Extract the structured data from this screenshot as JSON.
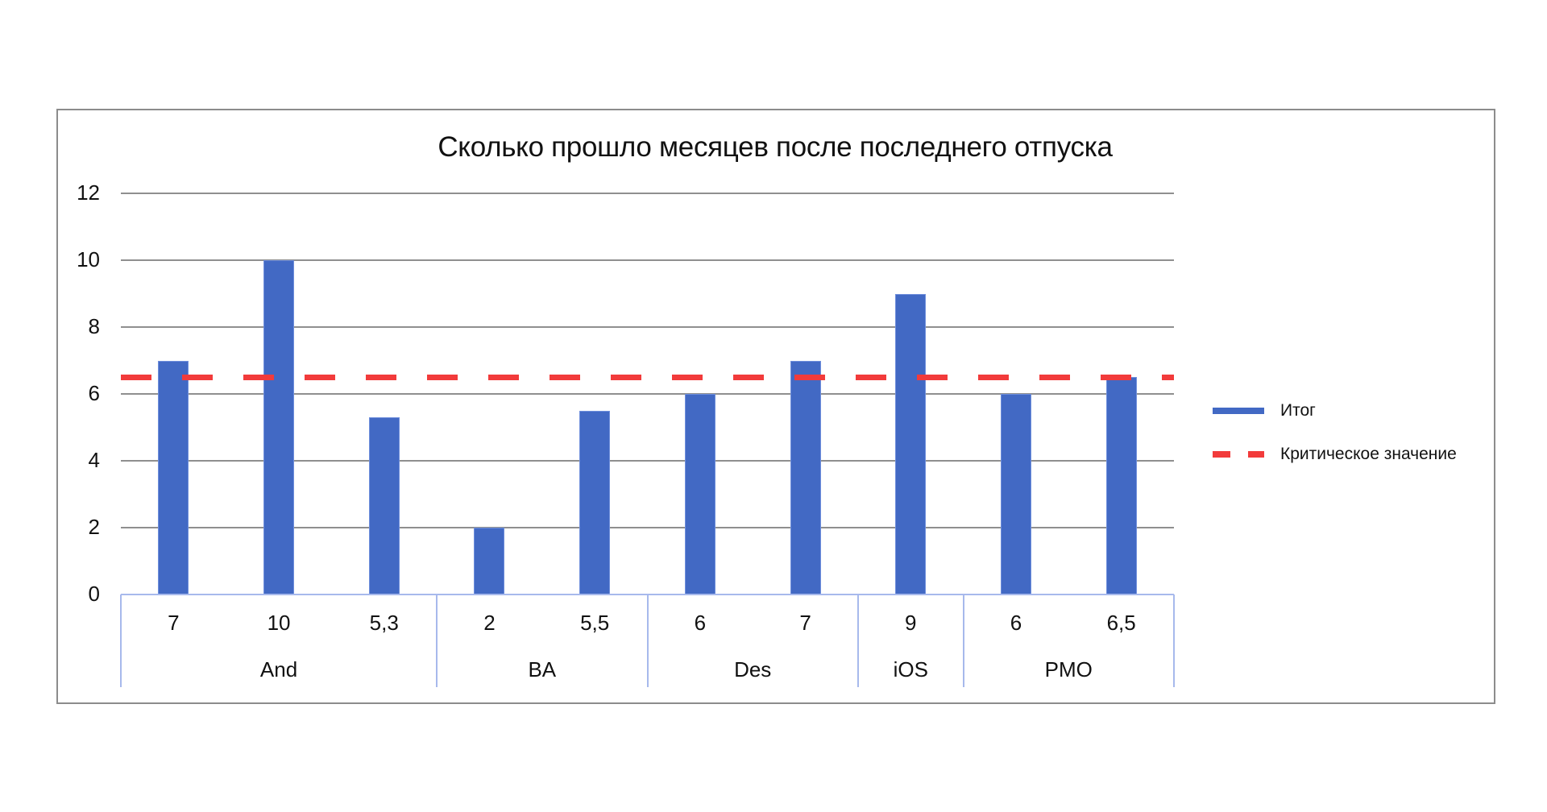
{
  "chart_data": {
    "type": "bar",
    "title": "Сколько прошло месяцев после последнего отпуска",
    "xlabel": "",
    "ylabel": "",
    "ylim": [
      0,
      12
    ],
    "y_ticks": [
      "0",
      "2",
      "4",
      "6",
      "8",
      "10",
      "12"
    ],
    "grid": true,
    "legend_position": "right",
    "groups": [
      {
        "name": "And",
        "categories": [
          "7",
          "10",
          "5,3"
        ],
        "values": [
          7,
          10,
          5.3
        ]
      },
      {
        "name": "BA",
        "categories": [
          "2",
          "5,5"
        ],
        "values": [
          2,
          5.5
        ]
      },
      {
        "name": "Des",
        "categories": [
          "6",
          "7"
        ],
        "values": [
          6,
          7
        ]
      },
      {
        "name": "iOS",
        "categories": [
          "9"
        ],
        "values": [
          9
        ]
      },
      {
        "name": "PMO",
        "categories": [
          "6",
          "6,5"
        ],
        "values": [
          6,
          6.5
        ]
      }
    ],
    "categories": [
      "7",
      "10",
      "5,3",
      "2",
      "5,5",
      "6",
      "7",
      "9",
      "6",
      "6,5"
    ],
    "series": [
      {
        "name": "Итог",
        "type": "bar",
        "color": "#4269c4",
        "values": [
          7,
          10,
          5.3,
          2,
          5.5,
          6,
          7,
          9,
          6,
          6.5
        ]
      },
      {
        "name": "Критическое значение",
        "type": "line",
        "style": "dashed",
        "color": "#f23b3b",
        "values": [
          6.5,
          6.5,
          6.5,
          6.5,
          6.5,
          6.5,
          6.5,
          6.5,
          6.5,
          6.5
        ]
      }
    ]
  },
  "legend": {
    "items": [
      {
        "label": "Итог",
        "style": "solid",
        "color": "#4269c4"
      },
      {
        "label": "Критическое значение",
        "style": "dashed",
        "color": "#f23b3b"
      }
    ]
  },
  "colors": {
    "bar": "#4269c4",
    "critical": "#f23b3b",
    "grid": "#8f8f8f",
    "axis": "#a7b9ec",
    "frame": "#8c8c8c"
  }
}
